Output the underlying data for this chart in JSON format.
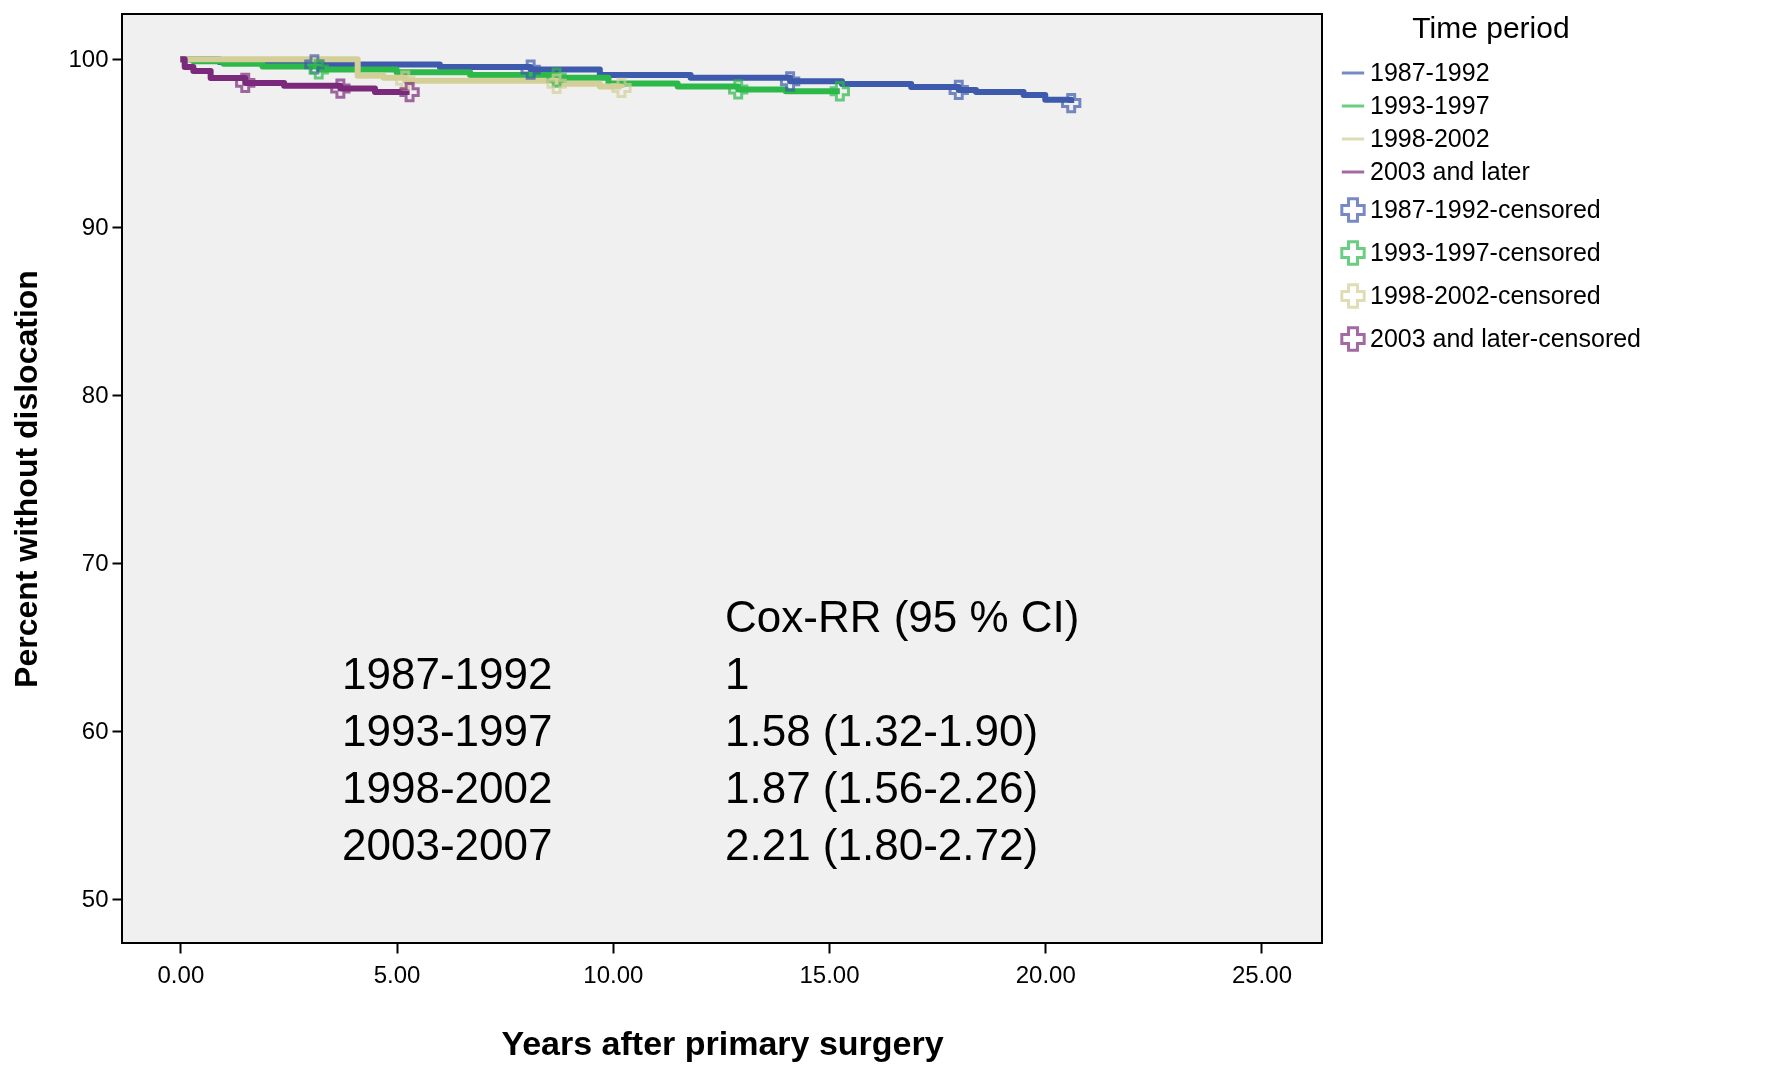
{
  "chart_data": {
    "type": "step",
    "xlabel": "Years after primary surgery",
    "ylabel": "Percent without dislocation",
    "legend_title": "Time period",
    "legend": "right",
    "grid": false,
    "xlim": [
      -1.35,
      26.4
    ],
    "ylim": [
      47.4,
      102.7
    ],
    "xticks": [
      {
        "value": 0,
        "label": "0.00"
      },
      {
        "value": 5,
        "label": "5.00"
      },
      {
        "value": 10,
        "label": "10.00"
      },
      {
        "value": 15,
        "label": "15.00"
      },
      {
        "value": 20,
        "label": "20.00"
      },
      {
        "value": 25,
        "label": "25.00"
      }
    ],
    "yticks": [
      50,
      60,
      70,
      80,
      90,
      100
    ],
    "annotations": [
      "Cox-RR (95 % CI)",
      "1987-1992",
      "1",
      "1993-1997",
      "1.58 (1.32-1.90)",
      "1998-2002",
      "1.87 (1.56-2.26)",
      "2003-2007",
      "2.21 (1.80-2.72)"
    ],
    "series": [
      {
        "name": "1987-1992",
        "color": "#3e5aad",
        "x": [
          0,
          0.9,
          3.1,
          6.0,
          8.1,
          9.7,
          11.8,
          14.1,
          15.3,
          16.9,
          18.0,
          18.4,
          19.5,
          20.0,
          20.6
        ],
        "values": [
          100,
          99.84,
          99.7,
          99.54,
          99.39,
          99.07,
          98.91,
          98.69,
          98.53,
          98.35,
          98.18,
          98.06,
          97.88,
          97.6,
          97.4
        ]
      },
      {
        "name": "1993-1997",
        "color": "#2db84a",
        "x": [
          0,
          0.3,
          1.0,
          1.9,
          3.2,
          5.0,
          6.7,
          8.7,
          9.9,
          11.5,
          12.9,
          14.0,
          15.25
        ],
        "values": [
          100,
          99.88,
          99.74,
          99.58,
          99.4,
          99.23,
          99.07,
          98.91,
          98.56,
          98.39,
          98.21,
          98.1,
          98.1
        ]
      },
      {
        "name": "1998-2002",
        "color": "#d4cf98",
        "x": [
          0,
          4.1,
          4.7,
          5.2,
          8.7,
          9.7,
          10.2
        ],
        "values": [
          100,
          99.03,
          98.91,
          98.73,
          98.55,
          98.38,
          98.3
        ]
      },
      {
        "name": "2003 and later",
        "color": "#7b2a7b",
        "x": [
          0,
          0.1,
          0.3,
          0.7,
          1.5,
          2.4,
          3.7,
          4.5,
          5.3
        ],
        "values": [
          100,
          99.54,
          99.3,
          98.89,
          98.6,
          98.43,
          98.26,
          98.05,
          98.05
        ]
      },
      {
        "name": "1987-1992-censored",
        "color": "#3e5aad",
        "type": "scatter",
        "marker": "cross",
        "x": [
          3.1,
          8.1,
          14.1,
          18.0,
          20.6
        ],
        "values": [
          99.7,
          99.39,
          98.69,
          98.18,
          97.4
        ]
      },
      {
        "name": "1993-1997-censored",
        "color": "#2db84a",
        "type": "scatter",
        "marker": "cross",
        "x": [
          3.2,
          8.7,
          12.9,
          15.25
        ],
        "values": [
          99.4,
          98.91,
          98.21,
          98.1
        ]
      },
      {
        "name": "1998-2002-censored",
        "color": "#d4cf98",
        "type": "scatter",
        "marker": "cross",
        "x": [
          5.2,
          8.7,
          10.2
        ],
        "values": [
          98.73,
          98.55,
          98.3
        ]
      },
      {
        "name": "2003 and later-censored",
        "color": "#7b2a7b",
        "type": "scatter",
        "marker": "cross",
        "x": [
          1.5,
          3.7,
          5.3
        ],
        "values": [
          98.6,
          98.26,
          98.05
        ]
      }
    ]
  }
}
